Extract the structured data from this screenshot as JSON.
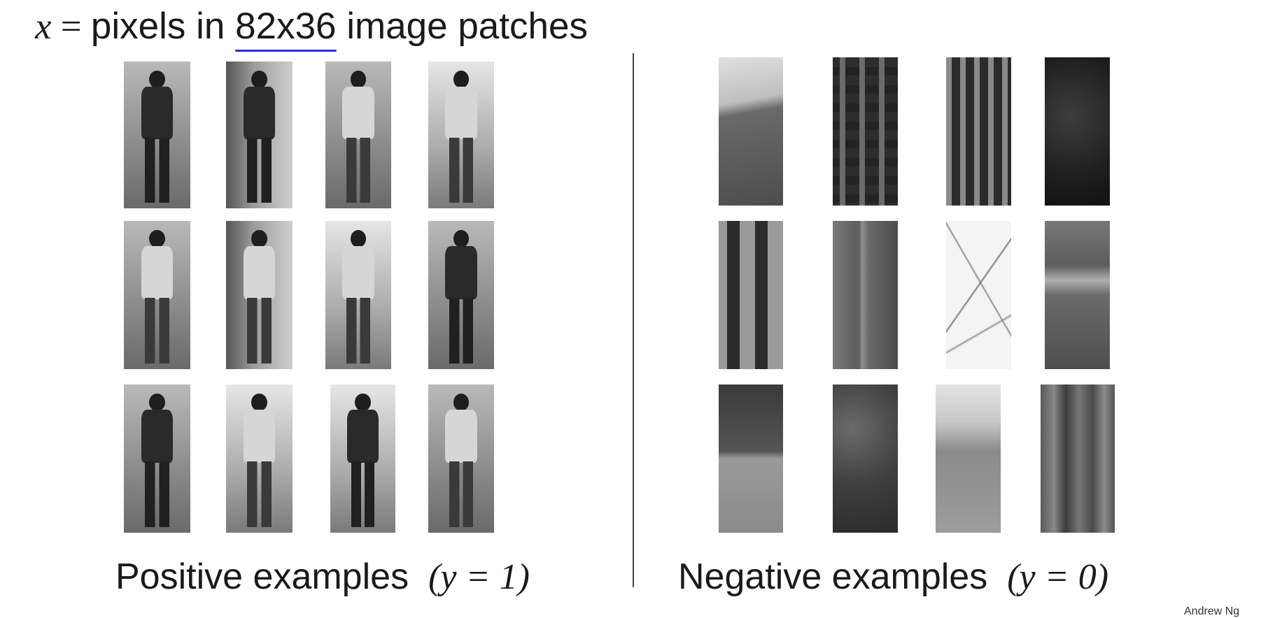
{
  "title": {
    "var": "x",
    "eq": " = ",
    "before": "pixels in ",
    "dims": "82x36",
    "after": " image patches"
  },
  "captions": {
    "positive": "Positive examples",
    "positive_label": "(y = 1)",
    "negative": "Negative examples",
    "negative_label": "(y = 0)"
  },
  "credit": "Andrew Ng"
}
